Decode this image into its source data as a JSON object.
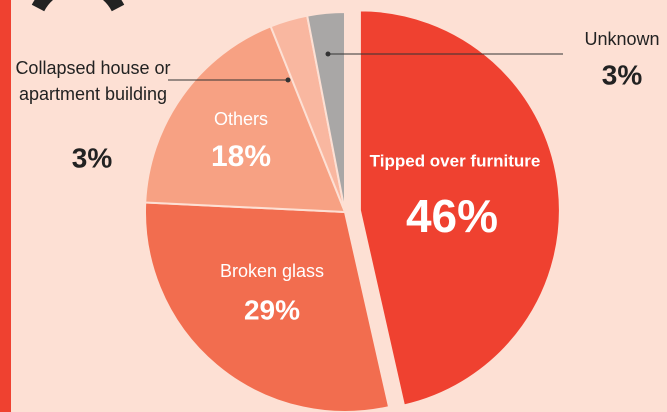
{
  "chart_data": {
    "type": "pie",
    "categories": [
      "Tipped over furniture",
      "Broken glass",
      "Others",
      "Collapsed house or apartment building",
      "Unknown"
    ],
    "values": [
      46,
      29,
      18,
      3,
      3
    ],
    "value_labels": [
      "46%",
      "29%",
      "18%",
      "3%",
      "3%"
    ],
    "colors": [
      "#ef4130",
      "#f26d4f",
      "#f7a183",
      "#f9b7a0",
      "#a9a7a6"
    ]
  }
}
